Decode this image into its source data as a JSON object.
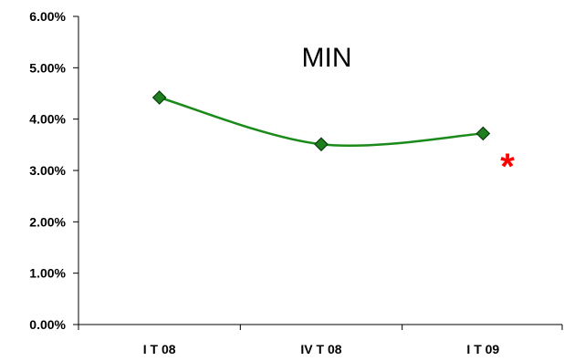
{
  "chart_data": {
    "type": "line",
    "title": "MIN",
    "categories": [
      "I T 08",
      "IV T 08",
      "I T 09"
    ],
    "series": [
      {
        "values": [
          4.42,
          3.51,
          3.72
        ]
      }
    ],
    "ylim": [
      0,
      6
    ],
    "yticks": [
      "0.00%",
      "1.00%",
      "2.00%",
      "3.00%",
      "4.00%",
      "5.00%",
      "6.00%"
    ],
    "ytick_values": [
      0,
      1,
      2,
      3,
      4,
      5,
      6
    ],
    "grid": false,
    "annotation": "*",
    "colors": {
      "line": "#1a8a1a",
      "marker": "#1f7f1f",
      "marker_edge": "#0b3d0b",
      "annotation": "#ff0000",
      "axis": "#000000"
    }
  }
}
